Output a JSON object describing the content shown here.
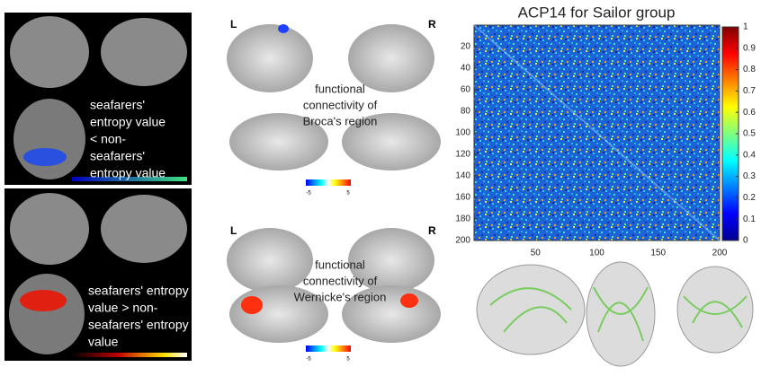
{
  "left_panel": {
    "upper_caption": [
      "seafarers'",
      "entropy value",
      "< non-",
      "seafarers'",
      "entropy value"
    ],
    "lower_caption": [
      "seafarers' entropy",
      "value > non-",
      "seafarers' entropy",
      "value"
    ]
  },
  "middle_panel": {
    "top": {
      "left_label": "L",
      "right_label": "R",
      "caption": [
        "functional",
        "connectivity of",
        "Broca's region"
      ],
      "colorbar_ticks": [
        -5,
        5
      ]
    },
    "bottom": {
      "left_label": "L",
      "right_label": "R",
      "caption": [
        "functional",
        "connectivity of",
        "Wernicke's region"
      ],
      "colorbar_ticks": [
        -5,
        5
      ]
    }
  },
  "heatmap": {
    "title": "ACP14 for Sailor group",
    "xlim": [
      0,
      200
    ],
    "ylim": [
      0,
      200
    ],
    "xticks": [
      50,
      100,
      150,
      200
    ],
    "yticks": [
      20,
      40,
      60,
      80,
      100,
      120,
      140,
      160,
      180,
      200
    ],
    "clim": [
      0,
      1
    ],
    "colorbar_ticks": [
      0,
      0.1,
      0.2,
      0.3,
      0.4,
      0.5,
      0.6,
      0.7,
      0.8,
      0.9,
      {
        "value": 1,
        "label": "1"
      }
    ]
  }
}
